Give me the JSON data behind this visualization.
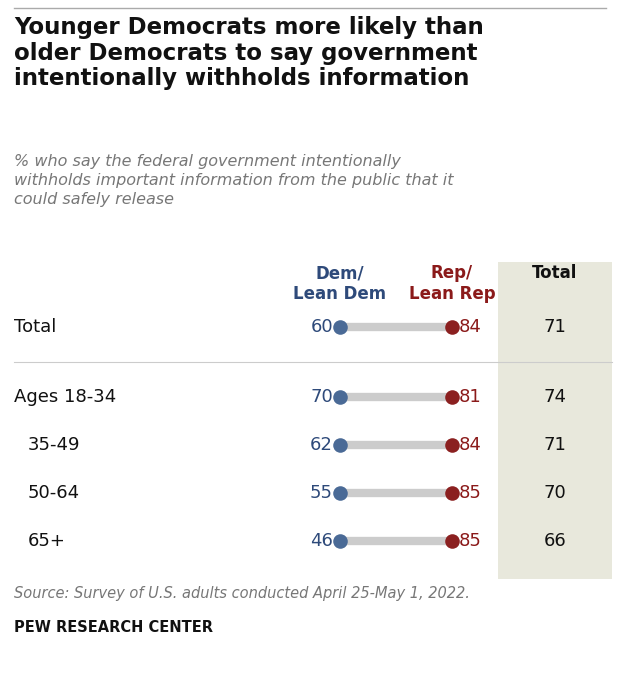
{
  "title": "Younger Democrats more likely than\nolder Democrats to say government\nintentionally withholds information",
  "subtitle": "% who say the federal government intentionally\nwithholds important information from the public that it\ncould safely release",
  "source": "Source: Survey of U.S. adults conducted April 25-May 1, 2022.",
  "branding": "PEW RESEARCH CENTER",
  "col_header_dem": "Dem/\nLean Dem",
  "col_header_rep": "Rep/\nLean Rep",
  "col_header_total": "Total",
  "col_header_dem_color": "#2E4A7A",
  "col_header_rep_color": "#8B1A1A",
  "rows": [
    {
      "label": "Total",
      "dem": 60,
      "rep": 84,
      "total": 71,
      "is_bold": false,
      "gap_after": true,
      "indent": false
    },
    {
      "label": "Ages 18-34",
      "dem": 70,
      "rep": 81,
      "total": 74,
      "is_bold": false,
      "gap_after": false,
      "indent": false
    },
    {
      "label": "35-49",
      "dem": 62,
      "rep": 84,
      "total": 71,
      "is_bold": false,
      "gap_after": false,
      "indent": true
    },
    {
      "label": "50-64",
      "dem": 55,
      "rep": 85,
      "total": 70,
      "is_bold": false,
      "gap_after": false,
      "indent": true
    },
    {
      "label": "65+",
      "dem": 46,
      "rep": 85,
      "total": 66,
      "is_bold": false,
      "gap_after": false,
      "indent": true
    }
  ],
  "dem_color": "#4A6A96",
  "rep_color": "#8B2020",
  "line_color": "#CCCCCC",
  "background_color": "#FFFFFF",
  "total_bg_color": "#E8E8DC",
  "title_fontsize": 16.5,
  "subtitle_fontsize": 11.5,
  "label_fontsize": 13,
  "value_fontsize": 13,
  "header_fontsize": 12,
  "source_fontsize": 10.5
}
